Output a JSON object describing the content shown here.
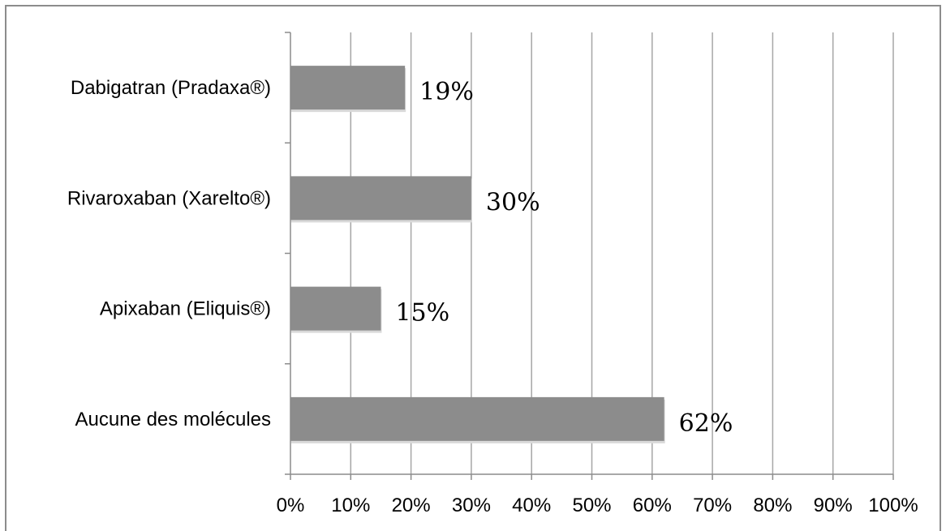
{
  "chart_data": {
    "type": "bar",
    "orientation": "horizontal",
    "categories": [
      "Dabigatran (Pradaxa®)",
      "Rivaroxaban (Xarelto®)",
      "Apixaban (Eliquis®)",
      "Aucune des molécules"
    ],
    "values": [
      19,
      30,
      15,
      62
    ],
    "data_labels": [
      "19%",
      "30%",
      "15%",
      "62%"
    ],
    "x_ticks": [
      "0%",
      "10%",
      "20%",
      "30%",
      "40%",
      "50%",
      "60%",
      "70%",
      "80%",
      "90%",
      "100%"
    ],
    "xlim": [
      0,
      100
    ],
    "grid": true,
    "legend": "none",
    "colors": {
      "bar": "#8c8c8c",
      "grid": "#a6a6a6",
      "axis": "#8c8c8c",
      "frame": "#8c8c8c"
    }
  }
}
